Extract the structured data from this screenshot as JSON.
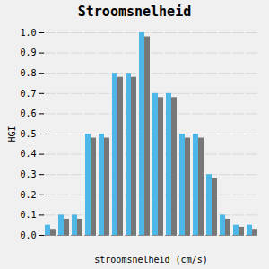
{
  "chart_data": {
    "type": "bar",
    "title": "Stroomsnelheid",
    "xlabel": "stroomsnelheid (cm/s)",
    "ylabel": "HGI",
    "categories": [
      null,
      null,
      null,
      null,
      null,
      null,
      null,
      null,
      null,
      null,
      null,
      null,
      null,
      null,
      null,
      null
    ],
    "series": [
      {
        "color": "#4db8e8",
        "values": [
          0.05,
          0.1,
          0.1,
          0.5,
          0.5,
          0.8,
          0.8,
          1.0,
          0.7,
          0.7,
          0.5,
          0.5,
          0.3,
          0.1,
          0.05,
          0.05
        ]
      },
      {
        "color": "#777777",
        "values": [
          0.03,
          0.08,
          0.08,
          0.48,
          0.48,
          0.78,
          0.78,
          0.98,
          0.68,
          0.68,
          0.48,
          0.48,
          0.28,
          0.08,
          0.04,
          0.03
        ]
      }
    ],
    "ylim": [
      0.0,
      1.0
    ],
    "yticks": [
      {
        "value": 0.0,
        "label": "0.0"
      },
      0.1,
      0.2,
      0.3,
      0.4,
      0.5,
      0.6,
      0.7,
      0.8,
      0.9,
      {
        "value": 1.0,
        "label": "1.0"
      }
    ],
    "grid": true,
    "tick_labels": "y"
  }
}
